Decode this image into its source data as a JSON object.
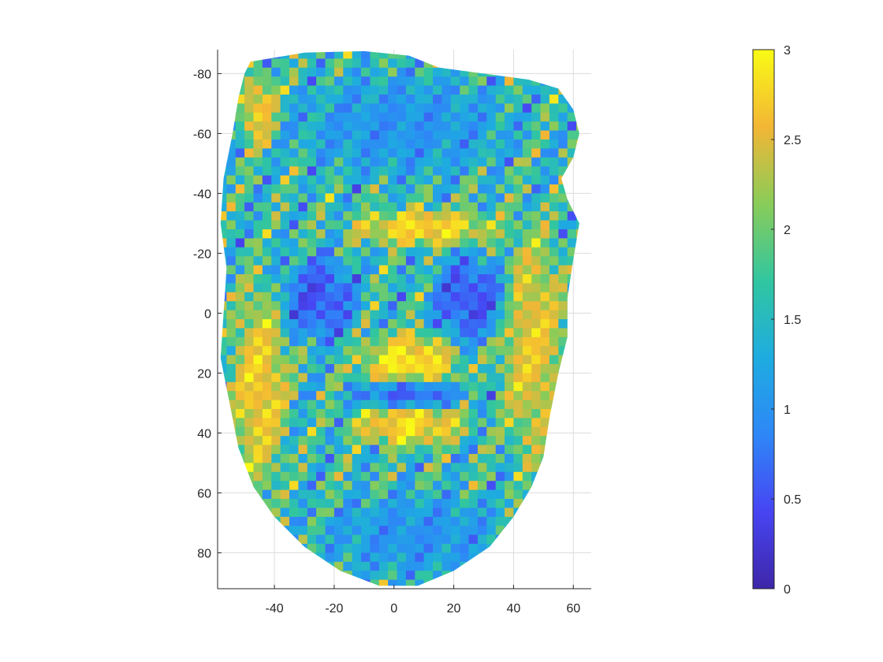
{
  "chart_data": {
    "type": "heatmap",
    "title": "",
    "xlabel": "",
    "ylabel": "",
    "xlim": [
      -59,
      66
    ],
    "ylim": [
      -88,
      92
    ],
    "y_reversed": true,
    "grid": true,
    "x_ticks": [
      -40,
      -20,
      0,
      20,
      40,
      60
    ],
    "y_ticks": [
      -80,
      -60,
      -40,
      -20,
      0,
      20,
      40,
      60,
      80
    ],
    "colorbar": {
      "location": "right",
      "colormap": "parula",
      "limits": [
        0,
        3
      ],
      "ticks": [
        0,
        0.5,
        1,
        1.5,
        2,
        2.5,
        3
      ],
      "colors": [
        "#3e26a8",
        "#4745f3",
        "#2e87f7",
        "#1eace0",
        "#31c6a0",
        "#89cc59",
        "#f3b635",
        "#f9fb15"
      ]
    },
    "content_description": "Point-cloud scatter of a human face colored by value (0 to 3); high values (yellow) on brow, nose, cheeks, upper lip and chin ridges; low values (blue) around eyes, mouth edges and face border",
    "regions": [
      {
        "feature": "brow",
        "x": [
          -15,
          35
        ],
        "y": [
          -35,
          -22
        ],
        "value": 2.8
      },
      {
        "feature": "nose-tip",
        "x": [
          -12,
          22
        ],
        "y": [
          6,
          28
        ],
        "value": 2.9
      },
      {
        "feature": "upper-lip",
        "x": [
          -15,
          25
        ],
        "y": [
          30,
          45
        ],
        "value": 2.8
      },
      {
        "feature": "left-cheek",
        "x": [
          -55,
          -35
        ],
        "y": [
          -10,
          60
        ],
        "value": 2.7
      },
      {
        "feature": "right-cheek",
        "x": [
          35,
          58
        ],
        "y": [
          -30,
          50
        ],
        "value": 2.6
      },
      {
        "feature": "forehead-left",
        "x": [
          -52,
          -38
        ],
        "y": [
          -80,
          -55
        ],
        "value": 2.7
      },
      {
        "feature": "left-eye",
        "x": [
          -38,
          -12
        ],
        "y": [
          -20,
          10
        ],
        "value": 0.5
      },
      {
        "feature": "right-eye",
        "x": [
          12,
          38
        ],
        "y": [
          -20,
          10
        ],
        "value": 0.5
      },
      {
        "feature": "mouth",
        "x": [
          -15,
          25
        ],
        "y": [
          22,
          32
        ],
        "value": 0.6
      },
      {
        "feature": "chin",
        "x": [
          -25,
          40
        ],
        "y": [
          60,
          88
        ],
        "value": 1.0
      },
      {
        "feature": "forehead",
        "x": [
          -35,
          40
        ],
        "y": [
          -80,
          -45
        ],
        "value": 1.0
      }
    ]
  }
}
